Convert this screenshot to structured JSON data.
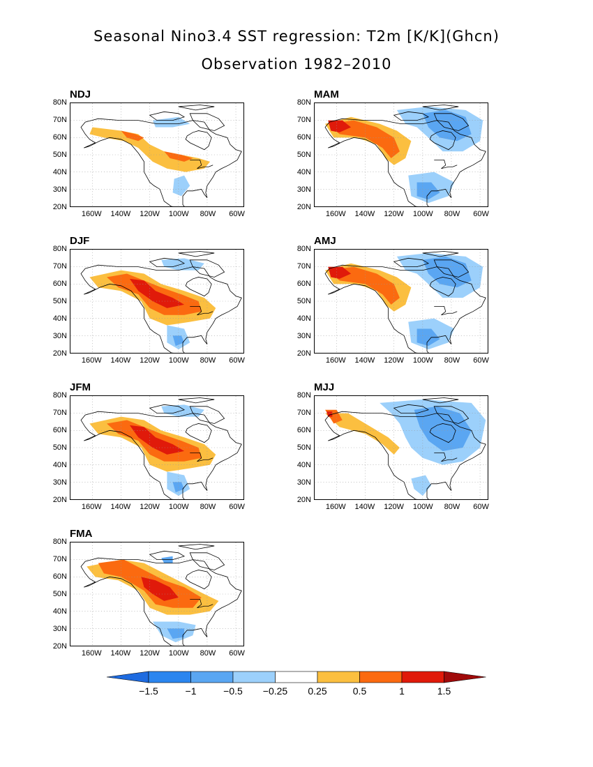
{
  "title": "Seasonal Nino3.4 SST regression: T2m [K/K](Ghcn)",
  "subtitle": "Observation 1982–2010",
  "y_ticks": [
    "80N",
    "70N",
    "60N",
    "50N",
    "40N",
    "30N",
    "20N"
  ],
  "x_ticks": [
    "160W",
    "140W",
    "120W",
    "100W",
    "80W",
    "60W"
  ],
  "panels": [
    {
      "label": "NDJ",
      "pattern": "weak_warm"
    },
    {
      "label": "MAM",
      "pattern": "alaska_warm_east_cool"
    },
    {
      "label": "DJF",
      "pattern": "strong_warm"
    },
    {
      "label": "AMJ",
      "pattern": "alaska_warm_east_cool"
    },
    {
      "label": "JFM",
      "pattern": "strong_warm"
    },
    {
      "label": "MJJ",
      "pattern": "mostly_cool"
    },
    {
      "label": "FMA",
      "pattern": "strong_warm_core"
    }
  ],
  "colorbar": {
    "labels": [
      "−1.5",
      "−1",
      "−0.5",
      "−0.25",
      "0.25",
      "0.5",
      "1",
      "1.5"
    ],
    "colors": [
      "#1e6be0",
      "#2b85ef",
      "#5aa6f2",
      "#9cd0fb",
      "#ffffff",
      "#fbbf40",
      "#fb6a10",
      "#e01a0a",
      "#a00a0a"
    ]
  }
}
